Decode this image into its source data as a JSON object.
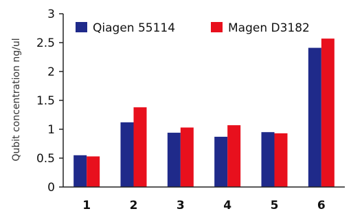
{
  "chart_data": {
    "type": "bar",
    "ylabel": "Qubit concentration ng/ul",
    "ylim": [
      0,
      3
    ],
    "yticks": [
      "0",
      "0.5",
      "1",
      "1.5",
      "2",
      "2.5",
      "3"
    ],
    "categories": [
      "1",
      "2",
      "3",
      "4",
      "5",
      "6"
    ],
    "series": [
      {
        "name": "Qiagen 55114",
        "color": "#1f2a8a",
        "values": [
          0.55,
          1.12,
          0.94,
          0.87,
          0.95,
          2.41
        ]
      },
      {
        "name": "Magen D3182",
        "color": "#e8101d",
        "values": [
          0.53,
          1.38,
          1.03,
          1.07,
          0.93,
          2.57
        ]
      }
    ],
    "legend": "top-left",
    "grid": false
  }
}
